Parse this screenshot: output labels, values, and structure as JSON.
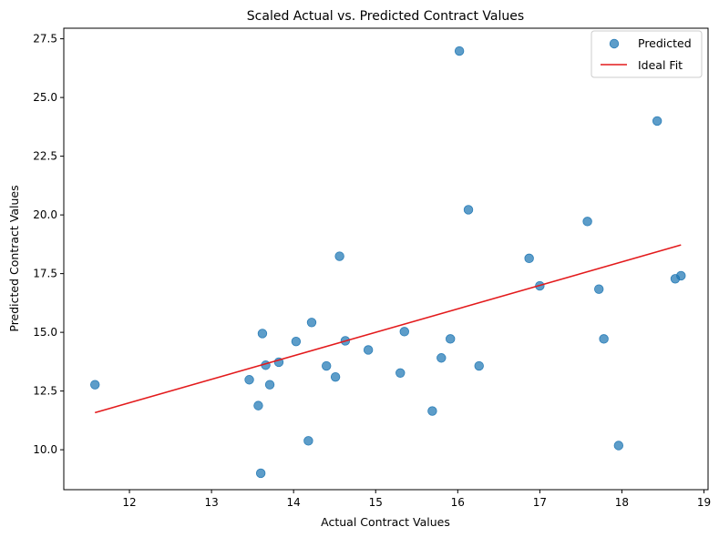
{
  "chart_data": {
    "type": "scatter",
    "title": "Scaled Actual vs. Predicted Contract Values",
    "xlabel": "Actual Contract Values",
    "ylabel": "Predicted Contract Values",
    "xlim": [
      11.2,
      19.05
    ],
    "ylim": [
      8.3,
      27.95
    ],
    "xticks": [
      12,
      13,
      14,
      15,
      16,
      17,
      18,
      19
    ],
    "yticks": [
      10.0,
      12.5,
      15.0,
      17.5,
      20.0,
      22.5,
      25.0,
      27.5
    ],
    "ytick_labels": [
      "10.0",
      "12.5",
      "15.0",
      "17.5",
      "20.0",
      "22.5",
      "25.0",
      "27.5"
    ],
    "grid": false,
    "legend_position": "top-right",
    "series": [
      {
        "name": "Predicted",
        "kind": "scatter",
        "color": "#1f77b4",
        "points": [
          [
            11.58,
            12.77
          ],
          [
            13.46,
            12.98
          ],
          [
            13.57,
            11.88
          ],
          [
            13.6,
            9.0
          ],
          [
            13.62,
            14.95
          ],
          [
            13.66,
            13.6
          ],
          [
            13.71,
            12.77
          ],
          [
            13.82,
            13.73
          ],
          [
            14.03,
            14.61
          ],
          [
            14.18,
            10.38
          ],
          [
            14.22,
            15.42
          ],
          [
            14.4,
            13.57
          ],
          [
            14.51,
            13.1
          ],
          [
            14.56,
            18.24
          ],
          [
            14.63,
            14.64
          ],
          [
            14.91,
            14.25
          ],
          [
            15.3,
            13.27
          ],
          [
            15.35,
            15.03
          ],
          [
            15.69,
            11.65
          ],
          [
            15.8,
            13.91
          ],
          [
            15.91,
            14.72
          ],
          [
            16.02,
            26.98
          ],
          [
            16.13,
            20.22
          ],
          [
            16.26,
            13.57
          ],
          [
            16.87,
            18.15
          ],
          [
            17.0,
            16.98
          ],
          [
            17.58,
            19.72
          ],
          [
            17.72,
            16.84
          ],
          [
            17.78,
            14.72
          ],
          [
            17.96,
            10.18
          ],
          [
            18.43,
            24.0
          ],
          [
            18.65,
            17.28
          ],
          [
            18.72,
            17.41
          ]
        ]
      },
      {
        "name": "Ideal Fit",
        "kind": "line",
        "color": "#e31a1c",
        "points": [
          [
            11.58,
            11.58
          ],
          [
            18.72,
            18.72
          ]
        ]
      }
    ]
  }
}
